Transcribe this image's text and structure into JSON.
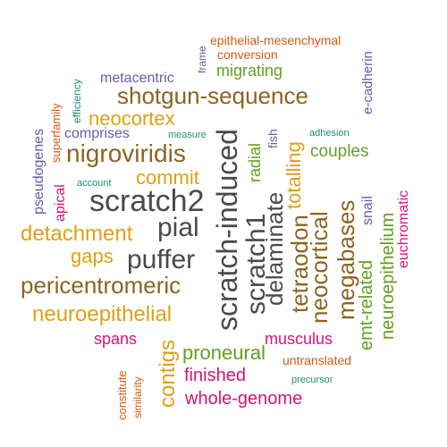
{
  "palette": {
    "dark_gray": "#4a4a4a",
    "brown": "#8c6420",
    "gold": "#e0a015",
    "green": "#63a020",
    "magenta": "#d4147a",
    "orange": "#d65a10",
    "purple": "#6b5aa8",
    "teal": "#1e9078"
  },
  "words": [
    {
      "text": "epithelial-mesenchymal",
      "color": "orange"
    },
    {
      "text": "conversion",
      "color": "orange"
    },
    {
      "text": "frame",
      "color": "purple"
    },
    {
      "text": "migrating",
      "color": "green"
    },
    {
      "text": "metacentric",
      "color": "purple"
    },
    {
      "text": "e-cadherin",
      "color": "purple"
    },
    {
      "text": "shotgun-sequence",
      "color": "brown"
    },
    {
      "text": "efficiency",
      "color": "teal"
    },
    {
      "text": "superfamily",
      "color": "orange"
    },
    {
      "text": "neocortex",
      "color": "gold"
    },
    {
      "text": "pseudogenes",
      "color": "purple"
    },
    {
      "text": "comprises",
      "color": "purple"
    },
    {
      "text": "measure",
      "color": "teal"
    },
    {
      "text": "fish",
      "color": "purple"
    },
    {
      "text": "adhesion",
      "color": "teal"
    },
    {
      "text": "nigroviridis",
      "color": "brown"
    },
    {
      "text": "couples",
      "color": "green"
    },
    {
      "text": "commit",
      "color": "gold"
    },
    {
      "text": "account",
      "color": "teal"
    },
    {
      "text": "apical",
      "color": "magenta"
    },
    {
      "text": "scratch2",
      "color": "dark_gray"
    },
    {
      "text": "scratch-induced",
      "color": "dark_gray"
    },
    {
      "text": "scratch1",
      "color": "dark_gray"
    },
    {
      "text": "radial",
      "color": "green"
    },
    {
      "text": "totalling",
      "color": "gold"
    },
    {
      "text": "delaminate",
      "color": "dark_gray"
    },
    {
      "text": "tetraodon",
      "color": "brown"
    },
    {
      "text": "neocortical",
      "color": "brown"
    },
    {
      "text": "megabases",
      "color": "brown"
    },
    {
      "text": "snail",
      "color": "purple"
    },
    {
      "text": "euchromatic",
      "color": "magenta"
    },
    {
      "text": "pial",
      "color": "dark_gray"
    },
    {
      "text": "detachment",
      "color": "gold"
    },
    {
      "text": "gaps",
      "color": "gold"
    },
    {
      "text": "puffer",
      "color": "dark_gray"
    },
    {
      "text": "pericentromeric",
      "color": "brown"
    },
    {
      "text": "emt-related",
      "color": "green"
    },
    {
      "text": "neuroepithelium",
      "color": "green"
    },
    {
      "text": "neuroepithelial",
      "color": "gold"
    },
    {
      "text": "spans",
      "color": "magenta"
    },
    {
      "text": "contigs",
      "color": "gold"
    },
    {
      "text": "musculus",
      "color": "magenta"
    },
    {
      "text": "proneural",
      "color": "green"
    },
    {
      "text": "untranslated",
      "color": "orange"
    },
    {
      "text": "finished",
      "color": "magenta"
    },
    {
      "text": "constitute",
      "color": "orange"
    },
    {
      "text": "similarity",
      "color": "orange"
    },
    {
      "text": "precursor",
      "color": "teal"
    },
    {
      "text": "whole-genome",
      "color": "magenta"
    }
  ]
}
